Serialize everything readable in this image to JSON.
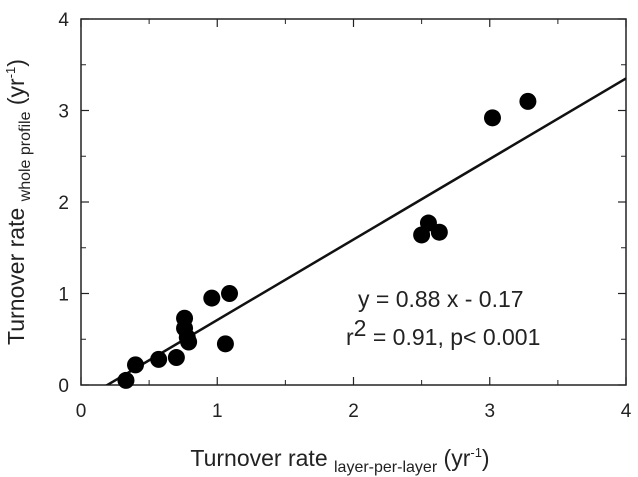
{
  "chart_data": {
    "type": "scatter",
    "xlabel": [
      "Turnover rate ",
      "layer-per-layer",
      " (yr",
      "-1",
      ")"
    ],
    "ylabel": [
      "Turnover rate ",
      "whole profile",
      " (yr",
      "-1",
      ")"
    ],
    "series": [
      {
        "color": "#000000",
        "x": [
          0.33,
          0.4,
          0.57,
          0.7,
          0.76,
          0.76,
          0.78,
          0.79,
          0.96,
          1.09,
          1.06,
          2.5,
          2.55,
          2.63,
          3.02,
          3.28
        ],
        "values": [
          0.05,
          0.22,
          0.28,
          0.3,
          0.73,
          0.62,
          0.52,
          0.47,
          0.95,
          1.0,
          0.45,
          1.64,
          1.77,
          1.67,
          2.92,
          3.1
        ]
      }
    ],
    "fit": {
      "slope": 0.88,
      "intercept": -0.17
    },
    "annotations": [
      [
        "y = 0.88 x - 0.17"
      ],
      [
        "r",
        "2",
        " = 0.91, p< 0.001"
      ]
    ],
    "xlim": [
      0,
      4
    ],
    "ylim": [
      0,
      4
    ],
    "xticks": [
      0,
      1,
      2,
      3,
      4
    ],
    "yticks": [
      0,
      1,
      2,
      3,
      4
    ]
  }
}
